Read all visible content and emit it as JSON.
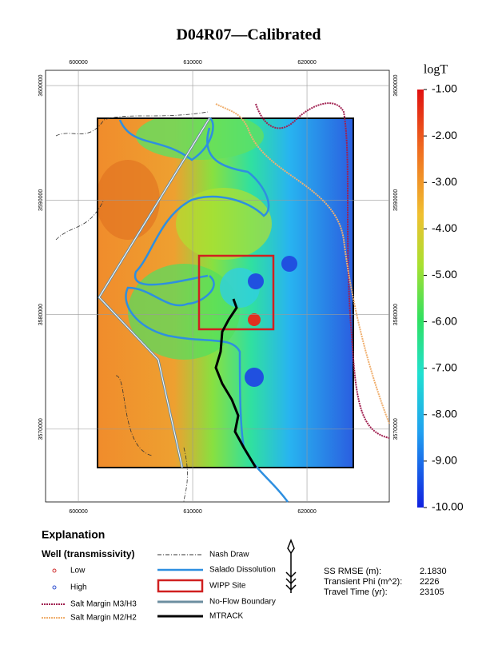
{
  "title": "D04R07—Calibrated",
  "map": {
    "xlim": [
      597130,
      627200
    ],
    "ylim": [
      3563640,
      3601330
    ],
    "xticks": [
      600000,
      610000,
      620000
    ],
    "yticks": [
      3570000,
      3580000,
      3590000,
      3600000
    ]
  },
  "colorbar": {
    "title": "logT",
    "lim": [
      -10,
      -1
    ],
    "ticks": [
      {
        "value": -1,
        "label": "-1.00"
      },
      {
        "value": -2,
        "label": "-2.00"
      },
      {
        "value": -3,
        "label": "-3.00"
      },
      {
        "value": -4,
        "label": "-4.00"
      },
      {
        "value": -5,
        "label": "-5.00"
      },
      {
        "value": -6,
        "label": "-6.00"
      },
      {
        "value": -7,
        "label": "-7.00"
      },
      {
        "value": -8,
        "label": "-8.00"
      },
      {
        "value": -9,
        "label": "-9.00"
      },
      {
        "value": -10,
        "label": "-10.00"
      }
    ]
  },
  "legend": {
    "title": "Explanation",
    "subtitle": "Well (transmissivity)",
    "items": [
      "Low",
      "High",
      "Salt Margin M3/H3",
      "Salt Margin M2/H2",
      "Nash Draw",
      "Salado Dissolution",
      "WIPP Site",
      "No-Flow Boundary",
      "MTRACK"
    ]
  },
  "stats": [
    [
      "SS RMSE (m):",
      "2.1830"
    ],
    [
      "Transient Phi (m^2):",
      "2226"
    ],
    [
      "Travel Time (yr):",
      "23105"
    ]
  ]
}
